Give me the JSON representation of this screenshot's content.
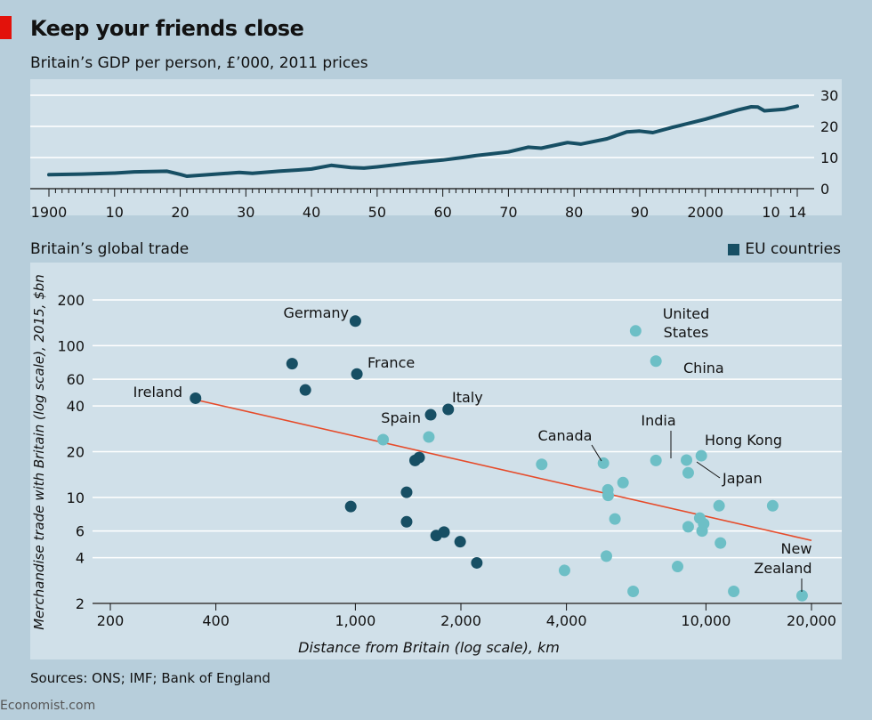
{
  "title": "Keep your friends close",
  "brand": "Economist.com",
  "sources": "Sources: ONS; IMF; Bank of England",
  "colors": {
    "background": "#b7cedb",
    "plot": "#d0e0e9",
    "eu": "#174f64",
    "non_eu": "#6dbfc6",
    "trend": "#e64b2a",
    "line": "#174f64",
    "brand_red": "#e3120b"
  },
  "chart_data": [
    {
      "type": "line",
      "title": "Britain’s GDP per person, £’000, 2011 prices",
      "xlim": [
        1900,
        2014
      ],
      "ylim": [
        0,
        30
      ],
      "yticks": [
        0,
        10,
        20,
        30
      ],
      "ytick_labels": [
        "0",
        "10",
        "20",
        "30"
      ],
      "xticks": [
        1900,
        1910,
        1920,
        1930,
        1940,
        1950,
        1960,
        1970,
        1980,
        1990,
        2000,
        2010,
        2014
      ],
      "xtick_labels": [
        "1900",
        "10",
        "20",
        "30",
        "40",
        "50",
        "60",
        "70",
        "80",
        "90",
        "2000",
        "10",
        "14"
      ],
      "x": [
        1900,
        1905,
        1910,
        1913,
        1918,
        1920,
        1921,
        1925,
        1929,
        1931,
        1935,
        1938,
        1940,
        1943,
        1946,
        1948,
        1950,
        1955,
        1960,
        1963,
        1965,
        1970,
        1973,
        1975,
        1979,
        1981,
        1985,
        1988,
        1990,
        1992,
        1995,
        2000,
        2005,
        2007,
        2008,
        2009,
        2012,
        2014
      ],
      "values": [
        4.5,
        4.7,
        5.0,
        5.4,
        5.6,
        4.6,
        4.0,
        4.6,
        5.2,
        4.9,
        5.6,
        6.0,
        6.3,
        7.5,
        6.8,
        6.6,
        7.0,
        8.2,
        9.2,
        10.0,
        10.6,
        11.8,
        13.3,
        13.0,
        14.8,
        14.3,
        16.0,
        18.2,
        18.5,
        18.0,
        19.7,
        22.3,
        25.3,
        26.3,
        26.2,
        25.0,
        25.5,
        26.5
      ]
    },
    {
      "type": "scatter",
      "title": "Britain’s global trade",
      "legend": "EU countries",
      "xlabel": "Distance from Britain (log scale), km",
      "ylabel": "Merchandise trade with Britain (log scale), 2015, $bn",
      "xscale": "log",
      "yscale": "log",
      "xlim": [
        170,
        20500
      ],
      "ylim": [
        2,
        250
      ],
      "xticks": [
        200,
        400,
        1000,
        2000,
        4000,
        10000,
        20000
      ],
      "xtick_labels": [
        "200",
        "400",
        "1,000",
        "2,000",
        "4,000",
        "10,000",
        "20,000"
      ],
      "yticks": [
        2,
        4,
        6,
        10,
        20,
        40,
        60,
        100,
        200
      ],
      "ytick_labels": [
        "2",
        "4",
        "6",
        "10",
        "20",
        "40",
        "60",
        "100",
        "200"
      ],
      "trend": {
        "x": [
          350,
          20000
        ],
        "y": [
          44,
          5.2
        ]
      },
      "labels": {
        "germany": "Germany",
        "france": "France",
        "ireland": "Ireland",
        "italy": "Italy",
        "spain": "Spain",
        "canada": "Canada",
        "india": "India",
        "us_line1": "United",
        "us_line2": "States",
        "china": "China",
        "hongkong": "Hong Kong",
        "japan": "Japan",
        "nz_line1": "New",
        "nz_line2": "Zealand"
      },
      "points": [
        {
          "x": 350,
          "y": 45,
          "eu": true
        },
        {
          "x": 1000,
          "y": 145,
          "eu": true
        },
        {
          "x": 1010,
          "y": 65,
          "eu": true
        },
        {
          "x": 660,
          "y": 76,
          "eu": true
        },
        {
          "x": 720,
          "y": 51,
          "eu": true
        },
        {
          "x": 1840,
          "y": 38,
          "eu": true
        },
        {
          "x": 1640,
          "y": 35,
          "eu": true
        },
        {
          "x": 1520,
          "y": 18.3,
          "eu": true
        },
        {
          "x": 1480,
          "y": 17.5,
          "eu": true
        },
        {
          "x": 1400,
          "y": 10.8,
          "eu": true
        },
        {
          "x": 970,
          "y": 8.7,
          "eu": true
        },
        {
          "x": 1400,
          "y": 6.9,
          "eu": true
        },
        {
          "x": 1790,
          "y": 5.9,
          "eu": true
        },
        {
          "x": 1700,
          "y": 5.6,
          "eu": true
        },
        {
          "x": 1990,
          "y": 5.1,
          "eu": true
        },
        {
          "x": 2220,
          "y": 3.7,
          "eu": true
        },
        {
          "x": 6300,
          "y": 125,
          "eu": false
        },
        {
          "x": 7200,
          "y": 79,
          "eu": false
        },
        {
          "x": 1200,
          "y": 24,
          "eu": false
        },
        {
          "x": 1620,
          "y": 25,
          "eu": false
        },
        {
          "x": 3400,
          "y": 16.5,
          "eu": false
        },
        {
          "x": 5100,
          "y": 16.8,
          "eu": false
        },
        {
          "x": 7200,
          "y": 17.5,
          "eu": false
        },
        {
          "x": 9700,
          "y": 18.8,
          "eu": false
        },
        {
          "x": 8800,
          "y": 17.6,
          "eu": false
        },
        {
          "x": 8900,
          "y": 14.5,
          "eu": false
        },
        {
          "x": 5800,
          "y": 12.5,
          "eu": false
        },
        {
          "x": 5250,
          "y": 11.2,
          "eu": false
        },
        {
          "x": 5260,
          "y": 10.3,
          "eu": false
        },
        {
          "x": 10900,
          "y": 8.8,
          "eu": false
        },
        {
          "x": 15500,
          "y": 8.8,
          "eu": false
        },
        {
          "x": 5500,
          "y": 7.2,
          "eu": false
        },
        {
          "x": 9600,
          "y": 7.3,
          "eu": false
        },
        {
          "x": 9850,
          "y": 6.7,
          "eu": false
        },
        {
          "x": 8900,
          "y": 6.4,
          "eu": false
        },
        {
          "x": 9750,
          "y": 6.0,
          "eu": false
        },
        {
          "x": 11000,
          "y": 5.0,
          "eu": false
        },
        {
          "x": 5200,
          "y": 4.1,
          "eu": false
        },
        {
          "x": 3950,
          "y": 3.3,
          "eu": false
        },
        {
          "x": 8300,
          "y": 3.5,
          "eu": false
        },
        {
          "x": 6200,
          "y": 2.4,
          "eu": false
        },
        {
          "x": 12000,
          "y": 2.4,
          "eu": false
        },
        {
          "x": 18800,
          "y": 2.25,
          "eu": false
        }
      ]
    }
  ]
}
